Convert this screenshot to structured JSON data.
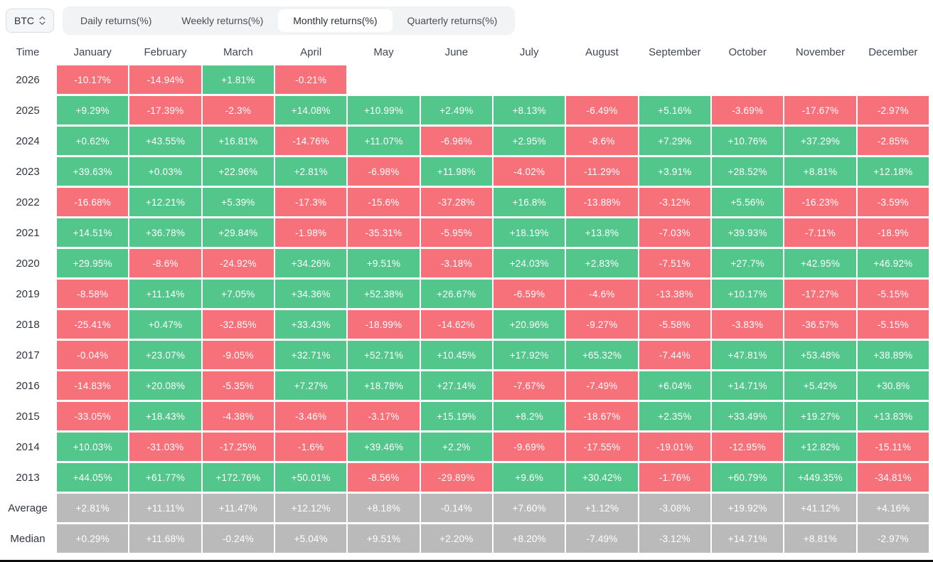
{
  "controls": {
    "symbol": "BTC",
    "tabs": [
      {
        "label": "Daily returns(%)",
        "active": false
      },
      {
        "label": "Weekly returns(%)",
        "active": false
      },
      {
        "label": "Monthly returns(%)",
        "active": true
      },
      {
        "label": "Quarterly returns(%)",
        "active": false
      }
    ]
  },
  "colors": {
    "positive": "#53C68C",
    "negative": "#F7717B",
    "summary": "#BABABA",
    "cell_text": "#FFFFFF",
    "header_text": "#3F4655",
    "label_text": "#2E3642"
  },
  "chart_data": {
    "type": "heatmap",
    "columns": [
      "Time",
      "January",
      "February",
      "March",
      "April",
      "May",
      "June",
      "July",
      "August",
      "September",
      "October",
      "November",
      "December"
    ],
    "rows": [
      {
        "label": "2026",
        "type": "year",
        "values": [
          "-10.17%",
          "-14.94%",
          "+1.81%",
          "-0.21%",
          null,
          null,
          null,
          null,
          null,
          null,
          null,
          null
        ]
      },
      {
        "label": "2025",
        "type": "year",
        "values": [
          "+9.29%",
          "-17.39%",
          "-2.3%",
          "+14.08%",
          "+10.99%",
          "+2.49%",
          "+8.13%",
          "-6.49%",
          "+5.16%",
          "-3.69%",
          "-17.67%",
          "-2.97%"
        ]
      },
      {
        "label": "2024",
        "type": "year",
        "values": [
          "+0.62%",
          "+43.55%",
          "+16.81%",
          "-14.76%",
          "+11.07%",
          "-6.96%",
          "+2.95%",
          "-8.6%",
          "+7.29%",
          "+10.76%",
          "+37.29%",
          "-2.85%"
        ]
      },
      {
        "label": "2023",
        "type": "year",
        "values": [
          "+39.63%",
          "+0.03%",
          "+22.96%",
          "+2.81%",
          "-6.98%",
          "+11.98%",
          "-4.02%",
          "-11.29%",
          "+3.91%",
          "+28.52%",
          "+8.81%",
          "+12.18%"
        ]
      },
      {
        "label": "2022",
        "type": "year",
        "values": [
          "-16.68%",
          "+12.21%",
          "+5.39%",
          "-17.3%",
          "-15.6%",
          "-37.28%",
          "+16.8%",
          "-13.88%",
          "-3.12%",
          "+5.56%",
          "-16.23%",
          "-3.59%"
        ]
      },
      {
        "label": "2021",
        "type": "year",
        "values": [
          "+14.51%",
          "+36.78%",
          "+29.84%",
          "-1.98%",
          "-35.31%",
          "-5.95%",
          "+18.19%",
          "+13.8%",
          "-7.03%",
          "+39.93%",
          "-7.11%",
          "-18.9%"
        ]
      },
      {
        "label": "2020",
        "type": "year",
        "values": [
          "+29.95%",
          "-8.6%",
          "-24.92%",
          "+34.26%",
          "+9.51%",
          "-3.18%",
          "+24.03%",
          "+2.83%",
          "-7.51%",
          "+27.7%",
          "+42.95%",
          "+46.92%"
        ]
      },
      {
        "label": "2019",
        "type": "year",
        "values": [
          "-8.58%",
          "+11.14%",
          "+7.05%",
          "+34.36%",
          "+52.38%",
          "+26.67%",
          "-6.59%",
          "-4.6%",
          "-13.38%",
          "+10.17%",
          "-17.27%",
          "-5.15%"
        ]
      },
      {
        "label": "2018",
        "type": "year",
        "values": [
          "-25.41%",
          "+0.47%",
          "-32.85%",
          "+33.43%",
          "-18.99%",
          "-14.62%",
          "+20.96%",
          "-9.27%",
          "-5.58%",
          "-3.83%",
          "-36.57%",
          "-5.15%"
        ]
      },
      {
        "label": "2017",
        "type": "year",
        "values": [
          "-0.04%",
          "+23.07%",
          "-9.05%",
          "+32.71%",
          "+52.71%",
          "+10.45%",
          "+17.92%",
          "+65.32%",
          "-7.44%",
          "+47.81%",
          "+53.48%",
          "+38.89%"
        ]
      },
      {
        "label": "2016",
        "type": "year",
        "values": [
          "-14.83%",
          "+20.08%",
          "-5.35%",
          "+7.27%",
          "+18.78%",
          "+27.14%",
          "-7.67%",
          "-7.49%",
          "+6.04%",
          "+14.71%",
          "+5.42%",
          "+30.8%"
        ]
      },
      {
        "label": "2015",
        "type": "year",
        "values": [
          "-33.05%",
          "+18.43%",
          "-4.38%",
          "-3.46%",
          "-3.17%",
          "+15.19%",
          "+8.2%",
          "-18.67%",
          "+2.35%",
          "+33.49%",
          "+19.27%",
          "+13.83%"
        ]
      },
      {
        "label": "2014",
        "type": "year",
        "values": [
          "+10.03%",
          "-31.03%",
          "-17.25%",
          "-1.6%",
          "+39.46%",
          "+2.2%",
          "-9.69%",
          "-17.55%",
          "-19.01%",
          "-12.95%",
          "+12.82%",
          "-15.11%"
        ]
      },
      {
        "label": "2013",
        "type": "year",
        "values": [
          "+44.05%",
          "+61.77%",
          "+172.76%",
          "+50.01%",
          "-8.56%",
          "-29.89%",
          "+9.6%",
          "+30.42%",
          "-1.76%",
          "+60.79%",
          "+449.35%",
          "-34.81%"
        ]
      },
      {
        "label": "Average",
        "type": "summary",
        "values": [
          "+2.81%",
          "+11.11%",
          "+11.47%",
          "+12.12%",
          "+8.18%",
          "-0.14%",
          "+7.60%",
          "+1.12%",
          "-3.08%",
          "+19.92%",
          "+41.12%",
          "+4.16%"
        ]
      },
      {
        "label": "Median",
        "type": "summary",
        "values": [
          "+0.29%",
          "+11.68%",
          "-0.24%",
          "+5.04%",
          "+9.51%",
          "+2.20%",
          "+8.20%",
          "-7.49%",
          "-3.12%",
          "+14.71%",
          "+8.81%",
          "-2.97%"
        ]
      }
    ]
  }
}
